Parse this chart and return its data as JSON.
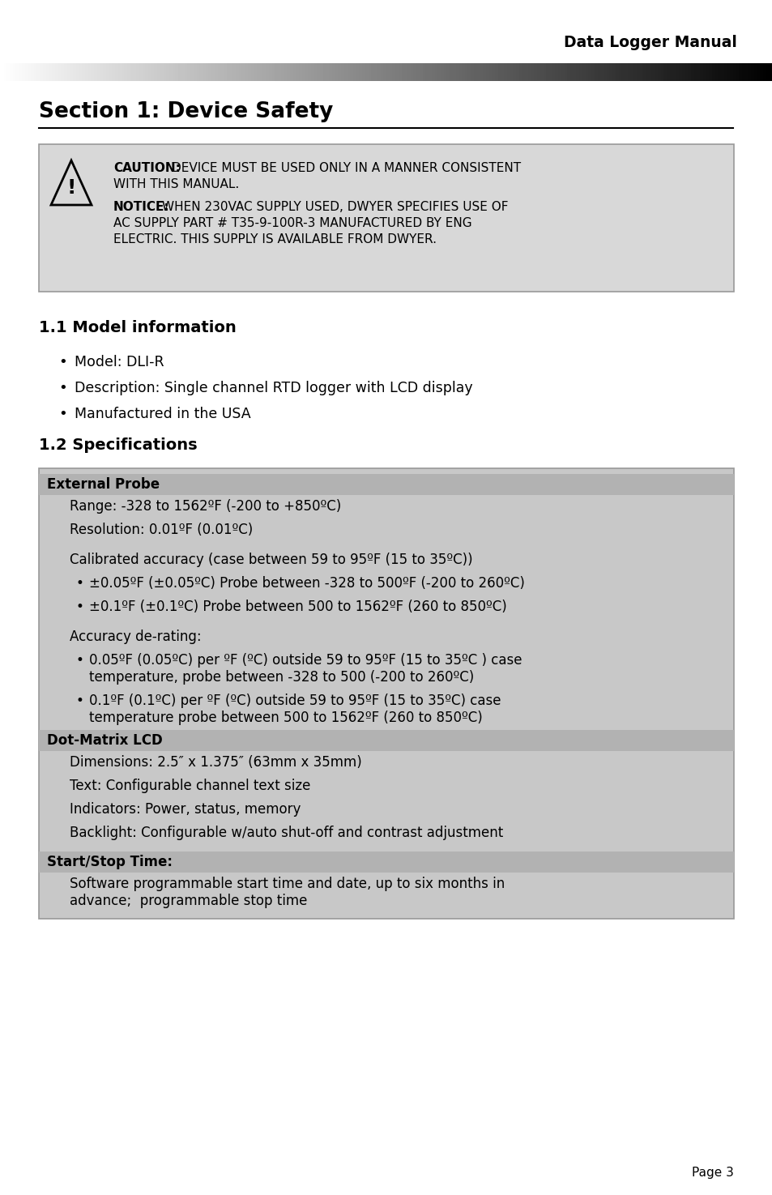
{
  "bg_color": "#ffffff",
  "header_title": "Data Logger Manual",
  "section_title": "Section 1: Device Safety",
  "subsection1_title": "1.1 Model information",
  "subsection2_title": "1.2 Specifications",
  "bullet_items": [
    "Model: DLI-R",
    "Description: Single channel RTD logger with LCD display",
    "Manufactured in the USA"
  ],
  "spec_rows": [
    {
      "header": "External Probe",
      "is_header": true,
      "bg": "#b5b5b5"
    },
    {
      "indent": 1,
      "text": "Range: -328 to 1562ºF (-200 to +850ºC)"
    },
    {
      "indent": 1,
      "text": "Resolution: 0.01ºF (0.01ºC)"
    },
    {
      "indent": 1,
      "text": ""
    },
    {
      "indent": 1,
      "text": "Calibrated accuracy (case between 59 to 95ºF (15 to 35ºC))"
    },
    {
      "indent": 2,
      "bullet": true,
      "text": "±0.05ºF (±0.05ºC) Probe between -328 to 500ºF (-200 to 260ºC)"
    },
    {
      "indent": 2,
      "bullet": true,
      "text": "±0.1ºF (±0.1ºC) Probe between 500 to 1562ºF (260 to 850ºC)"
    },
    {
      "indent": 1,
      "text": ""
    },
    {
      "indent": 1,
      "text": "Accuracy de-rating:"
    },
    {
      "indent": 2,
      "bullet": true,
      "text": "0.05ºF (0.05ºC) per ºF (ºC) outside 59 to 95ºF (15 to 35ºC ) case\ntemperature, probe between -328 to 500 (-200 to 260ºC)"
    },
    {
      "indent": 2,
      "bullet": true,
      "text": "0.1ºF (0.1ºC) per ºF (ºC) outside 59 to 95ºF (15 to 35ºC) case\ntemperature probe between 500 to 1562ºF (260 to 850ºC)"
    },
    {
      "header": "Dot-Matrix LCD",
      "is_header": true,
      "bg": "#b5b5b5"
    },
    {
      "indent": 1,
      "text": "Dimensions: 2.5″ x 1.375″ (63mm x 35mm)"
    },
    {
      "indent": 1,
      "text": "Text: Configurable channel text size"
    },
    {
      "indent": 1,
      "text": "Indicators: Power, status, memory"
    },
    {
      "indent": 1,
      "text": "Backlight: Configurable w/auto shut-off and contrast adjustment"
    },
    {
      "indent": 1,
      "text": ""
    },
    {
      "header": "Start/Stop Time:",
      "is_header": true,
      "bg": "#b5b5b5"
    },
    {
      "indent": 1,
      "text": "Software programmable start time and date, up to six months in\nadvance;  programmable stop time"
    }
  ],
  "page_number": "Page 3",
  "caution_box_bg": "#d8d8d8",
  "spec_table_bg": "#c8c8c8"
}
